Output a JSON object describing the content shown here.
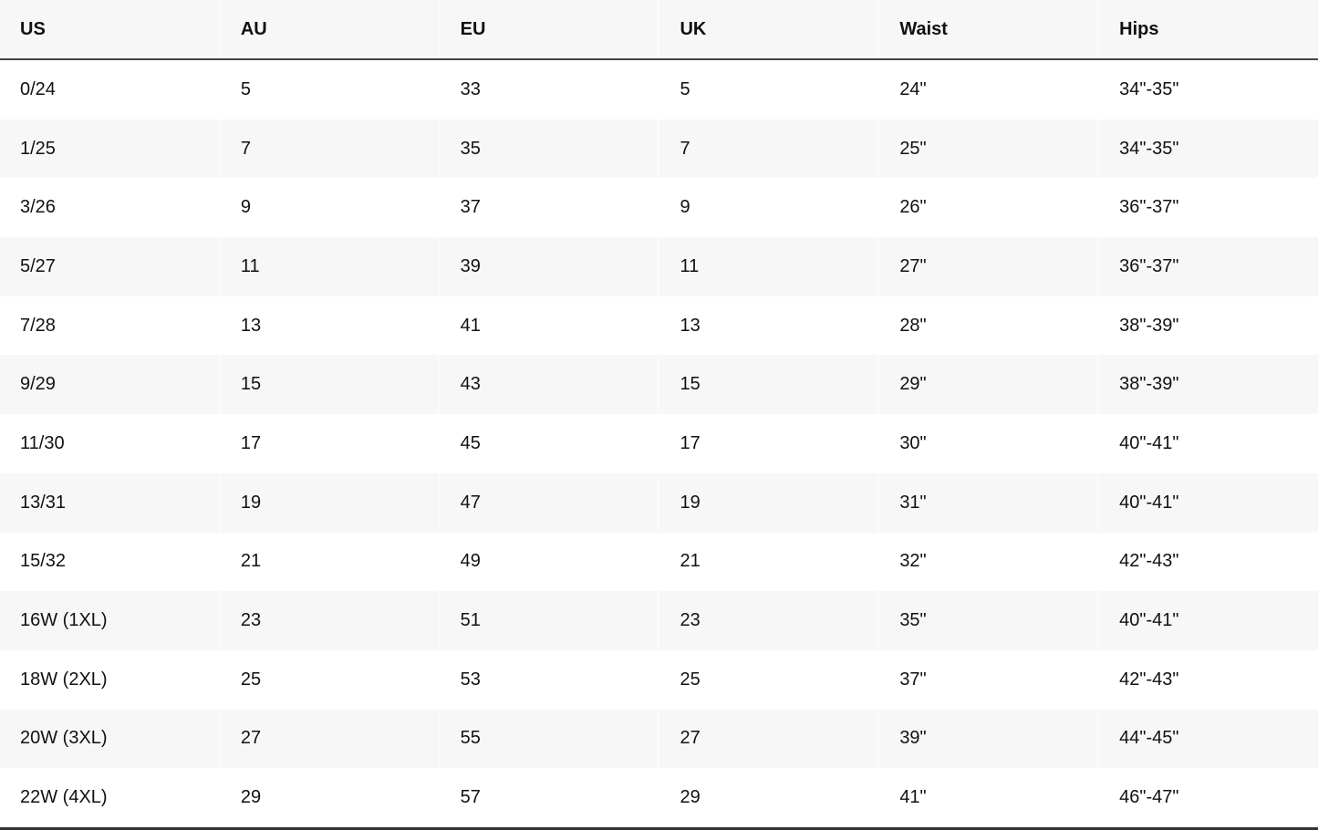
{
  "table": {
    "headers": [
      "US",
      "AU",
      "EU",
      "UK",
      "Waist",
      "Hips"
    ],
    "rows": [
      [
        "0/24",
        "5",
        "33",
        "5",
        "24\"",
        "34\"-35\""
      ],
      [
        "1/25",
        "7",
        "35",
        "7",
        "25\"",
        "34\"-35\""
      ],
      [
        "3/26",
        "9",
        "37",
        "9",
        "26\"",
        "36\"-37\""
      ],
      [
        "5/27",
        "11",
        "39",
        "11",
        "27\"",
        "36\"-37\""
      ],
      [
        "7/28",
        "13",
        "41",
        "13",
        "28\"",
        "38\"-39\""
      ],
      [
        "9/29",
        "15",
        "43",
        "15",
        "29\"",
        "38\"-39\""
      ],
      [
        "11/30",
        "17",
        "45",
        "17",
        "30\"",
        "40\"-41\""
      ],
      [
        "13/31",
        "19",
        "47",
        "19",
        "31\"",
        "40\"-41\""
      ],
      [
        "15/32",
        "21",
        "49",
        "21",
        "32\"",
        "42\"-43\""
      ],
      [
        "16W (1XL)",
        "23",
        "51",
        "23",
        "35\"",
        "40\"-41\""
      ],
      [
        "18W (2XL)",
        "25",
        "53",
        "25",
        "37\"",
        "42\"-43\""
      ],
      [
        "20W (3XL)",
        "27",
        "55",
        "27",
        "39\"",
        "44\"-45\""
      ],
      [
        "22W (4XL)",
        "29",
        "57",
        "29",
        "41\"",
        "46\"-47\""
      ]
    ]
  }
}
